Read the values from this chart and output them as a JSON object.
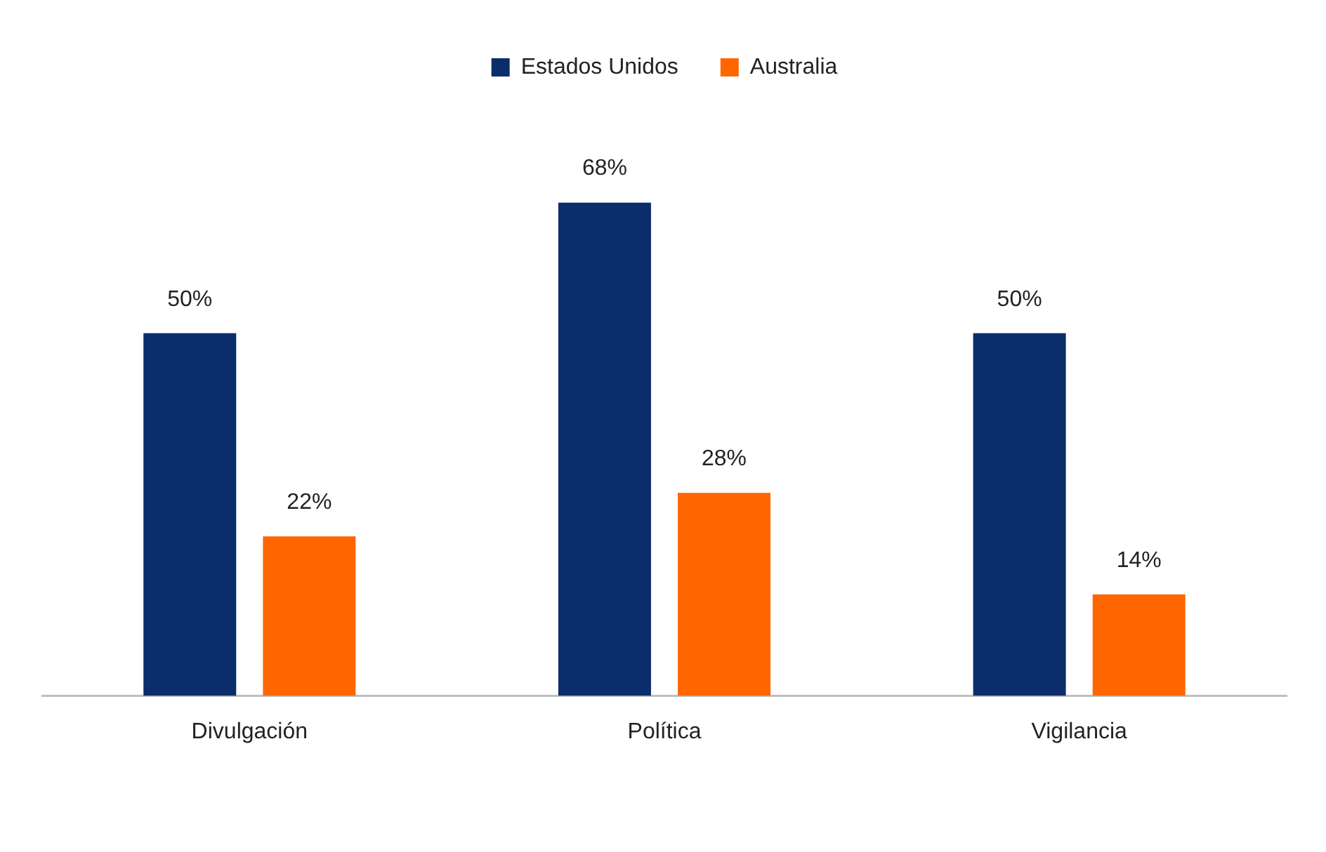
{
  "chart_data": {
    "type": "bar",
    "categories": [
      "Divulgación",
      "Política",
      "Vigilancia"
    ],
    "series": [
      {
        "name": "Estados Unidos",
        "color": "#0b2d6b",
        "values": [
          50,
          68,
          50
        ],
        "value_labels": [
          "50%",
          "68%",
          "50%"
        ]
      },
      {
        "name": "Australia",
        "color": "#ff6600",
        "values": [
          22,
          28,
          14
        ],
        "value_labels": [
          "22%",
          "28%",
          "14%"
        ]
      }
    ],
    "tick_labels": "x",
    "grid": false,
    "legend": "top"
  }
}
